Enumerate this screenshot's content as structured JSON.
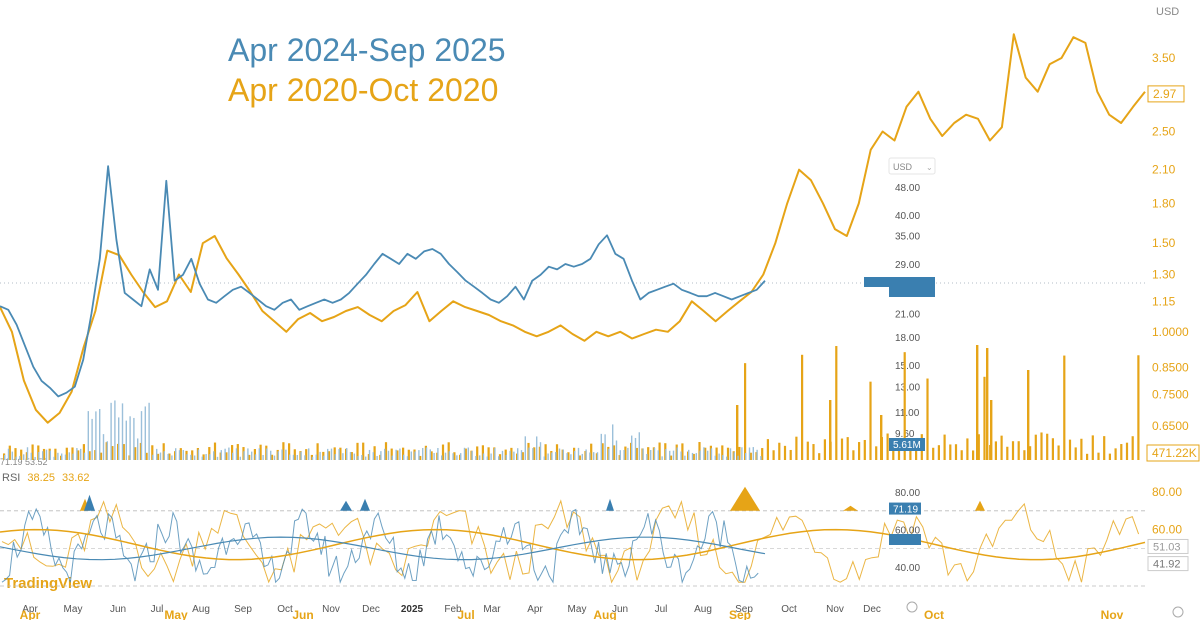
{
  "chart_data": {
    "type": "line",
    "title_lines": [
      "Apr 2024-Sep 2025",
      "Apr 2020-Oct 2020"
    ],
    "currency_label_right": "USD",
    "currency_label_inner": "USD",
    "colors": {
      "blue": "#4a8ab4",
      "orange": "#e6a417",
      "blue_dark": "#3a7fb0"
    },
    "right_axis_ticks": [
      "3.50",
      "2.50",
      "2.10",
      "1.80",
      "1.50",
      "1.30",
      "1.15",
      "1.0000",
      "0.8500",
      "0.7500",
      "0.6500"
    ],
    "right_axis_last_price": "2.97",
    "right_volume_label": "471.22K",
    "inner_axis_ticks": [
      "48.00",
      "40.00",
      "35.00",
      "29.00",
      "21.00",
      "18.00",
      "15.00",
      "13.00",
      "11.00",
      "9.60"
    ],
    "inner_volume_label": "5.61M",
    "rsi_right_ticks": [
      "80.00",
      "60.00"
    ],
    "rsi_right_values": [
      "51.03",
      "41.92"
    ],
    "rsi_inner_ticks": [
      "80.00",
      "60.00",
      "40.00"
    ],
    "rsi_inner_value": "71.19",
    "rsi_label": "RSI",
    "rsi_values": [
      "38.25",
      "33.62"
    ],
    "rsi_small_values": "71.19  53.52",
    "x_labels_blue": [
      "Apr",
      "May",
      "Jun",
      "Jul",
      "Aug",
      "Sep",
      "Oct",
      "Nov",
      "Dec",
      "2025",
      "Feb",
      "Mar",
      "Apr",
      "May",
      "Jun",
      "Jul",
      "Aug",
      "Sep",
      "Oct",
      "Nov",
      "Dec"
    ],
    "x_labels_orange": [
      "Apr",
      "May",
      "Jun",
      "Jul",
      "Aug",
      "Sep",
      "Oct",
      "Nov"
    ],
    "series": [
      {
        "period": "Apr 2024-Sep 2025",
        "color": "#4a8ab4",
        "values": [
          22.0,
          21.5,
          19.5,
          17.0,
          14.8,
          13.5,
          12.9,
          12.2,
          12.5,
          13.0,
          15.5,
          21.0,
          30.0,
          55.0,
          34.0,
          24.0,
          23.0,
          22.0,
          28.0,
          24.5,
          50.0,
          26.0,
          27.0,
          30.0,
          25.5,
          23.0,
          22.5,
          23.5,
          24.5,
          25.0,
          24.0,
          23.0,
          22.0,
          21.5,
          22.5,
          23.0,
          21.5,
          22.0,
          22.5,
          23.0,
          22.5,
          23.0,
          24.0,
          25.5,
          27.0,
          29.0,
          31.0,
          30.0,
          29.0,
          31.0,
          30.0,
          31.5,
          32.0,
          31.0,
          29.0,
          27.5,
          26.0,
          25.0,
          24.0,
          23.0,
          22.5,
          23.5,
          25.0,
          23.0,
          26.0,
          27.0,
          28.5,
          28.0,
          29.0,
          28.5,
          29.0,
          30.0,
          33.0,
          35.0,
          31.0,
          30.0,
          26.0,
          23.0,
          24.0,
          24.5,
          25.0,
          25.5,
          24.5,
          24.0,
          23.5,
          23.5,
          24.0,
          23.5,
          23.0,
          23.5,
          24.0,
          24.5,
          26.0
        ]
      },
      {
        "period": "Apr 2020-Oct 2020",
        "color": "#e6a417",
        "values": [
          1.12,
          1.0,
          0.8,
          0.7,
          0.66,
          0.69,
          0.76,
          0.93,
          1.1,
          1.45,
          1.42,
          1.3,
          1.2,
          1.12,
          1.15,
          1.3,
          1.2,
          1.5,
          1.55,
          1.4,
          1.3,
          1.2,
          1.1,
          1.05,
          1.0,
          1.06,
          1.09,
          1.05,
          1.07,
          1.1,
          1.12,
          1.08,
          1.05,
          1.1,
          1.13,
          1.2,
          1.05,
          1.1,
          1.15,
          1.12,
          1.1,
          1.08,
          1.05,
          1.03,
          1.0,
          0.98,
          1.0,
          1.03,
          0.99,
          0.96,
          1.0,
          0.98,
          1.0,
          0.97,
          0.99,
          1.01,
          1.0,
          1.05,
          1.15,
          1.1,
          1.05,
          1.1,
          1.15,
          1.2,
          1.3,
          1.5,
          1.8,
          2.1,
          2.0,
          1.8,
          1.6,
          1.55,
          1.8,
          2.3,
          2.5,
          2.4,
          2.8,
          3.0,
          2.65,
          2.45,
          2.6,
          2.7,
          2.65,
          2.4,
          2.55,
          3.9,
          3.2,
          3.0,
          3.4,
          3.5,
          3.85,
          3.75,
          3.0,
          2.7,
          2.6,
          2.8,
          3.0
        ]
      }
    ]
  }
}
